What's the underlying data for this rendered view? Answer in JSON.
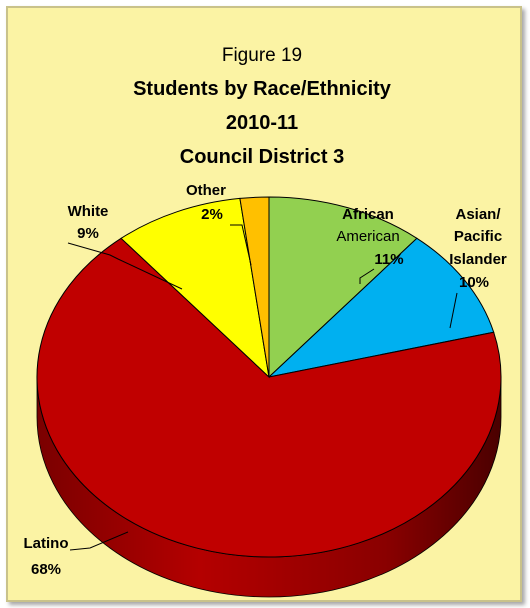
{
  "chart_data": {
    "type": "pie",
    "title_lines": [
      "Figure 19",
      "Students by Race/Ethnicity",
      "2010-11",
      "Council District 3"
    ],
    "slices": [
      {
        "label_lines": [
          "African",
          "American"
        ],
        "pct_label": "11%",
        "value": 11,
        "color": "#92d050"
      },
      {
        "label_lines": [
          "Asian/",
          "Pacific",
          "Islander"
        ],
        "pct_label": "10%",
        "value": 10,
        "color": "#00b0f0"
      },
      {
        "label_lines": [
          "Latino"
        ],
        "pct_label": "68%",
        "value": 68,
        "color": "#c00000"
      },
      {
        "label_lines": [
          "White"
        ],
        "pct_label": "9%",
        "value": 9,
        "color": "#ffff00"
      },
      {
        "label_lines": [
          "Other"
        ],
        "pct_label": "2%",
        "value": 2,
        "color": "#ffc000"
      }
    ],
    "style": "3d-pie",
    "legend": "none"
  },
  "colors": {
    "background": "#fbf3a4",
    "border": "#c9c28a",
    "side_shade": "#6e0000"
  }
}
